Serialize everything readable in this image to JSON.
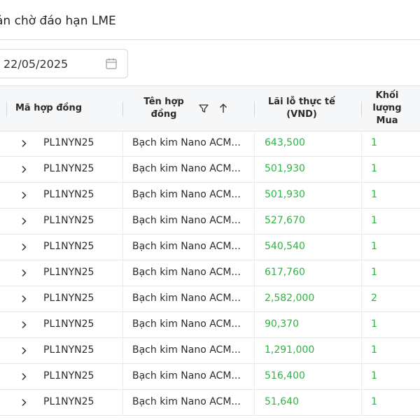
{
  "header": {
    "title": "ản chờ đáo hạn LME"
  },
  "filter": {
    "date_value": "22/05/2025"
  },
  "table": {
    "columns": {
      "contract_code": "Mã hợp đồng",
      "contract_name": "Tên hợp đồng",
      "realized_pnl": "Lãi lỗ thực tế (VND)",
      "buy_volume": "Khối lượng Mua"
    },
    "rows": [
      {
        "code": "PL1NYN25",
        "name": "Bạch kim Nano ACM...",
        "pnl": "643,500",
        "vol": "1"
      },
      {
        "code": "PL1NYN25",
        "name": "Bạch kim Nano ACM...",
        "pnl": "501,930",
        "vol": "1"
      },
      {
        "code": "PL1NYN25",
        "name": "Bạch kim Nano ACM...",
        "pnl": "501,930",
        "vol": "1"
      },
      {
        "code": "PL1NYN25",
        "name": "Bạch kim Nano ACM...",
        "pnl": "527,670",
        "vol": "1"
      },
      {
        "code": "PL1NYN25",
        "name": "Bạch kim Nano ACM...",
        "pnl": "540,540",
        "vol": "1"
      },
      {
        "code": "PL1NYN25",
        "name": "Bạch kim Nano ACM...",
        "pnl": "617,760",
        "vol": "1"
      },
      {
        "code": "PL1NYN25",
        "name": "Bạch kim Nano ACM...",
        "pnl": "2,582,000",
        "vol": "2"
      },
      {
        "code": "PL1NYN25",
        "name": "Bạch kim Nano ACM...",
        "pnl": "90,370",
        "vol": "1"
      },
      {
        "code": "PL1NYN25",
        "name": "Bạch kim Nano ACM...",
        "pnl": "1,291,000",
        "vol": "1"
      },
      {
        "code": "PL1NYN25",
        "name": "Bạch kim Nano ACM...",
        "pnl": "516,400",
        "vol": "1"
      },
      {
        "code": "PL1NYN25",
        "name": "Bạch kim Nano ACM...",
        "pnl": "51,640",
        "vol": "1"
      }
    ]
  },
  "colors": {
    "positive": "#2fb344",
    "header_bg": "#f6f7f8"
  },
  "icons": {
    "date_picker": "calendar-icon",
    "filter": "filter-icon",
    "sort": "arrow-up-icon",
    "expand": "chevron-right-icon"
  }
}
